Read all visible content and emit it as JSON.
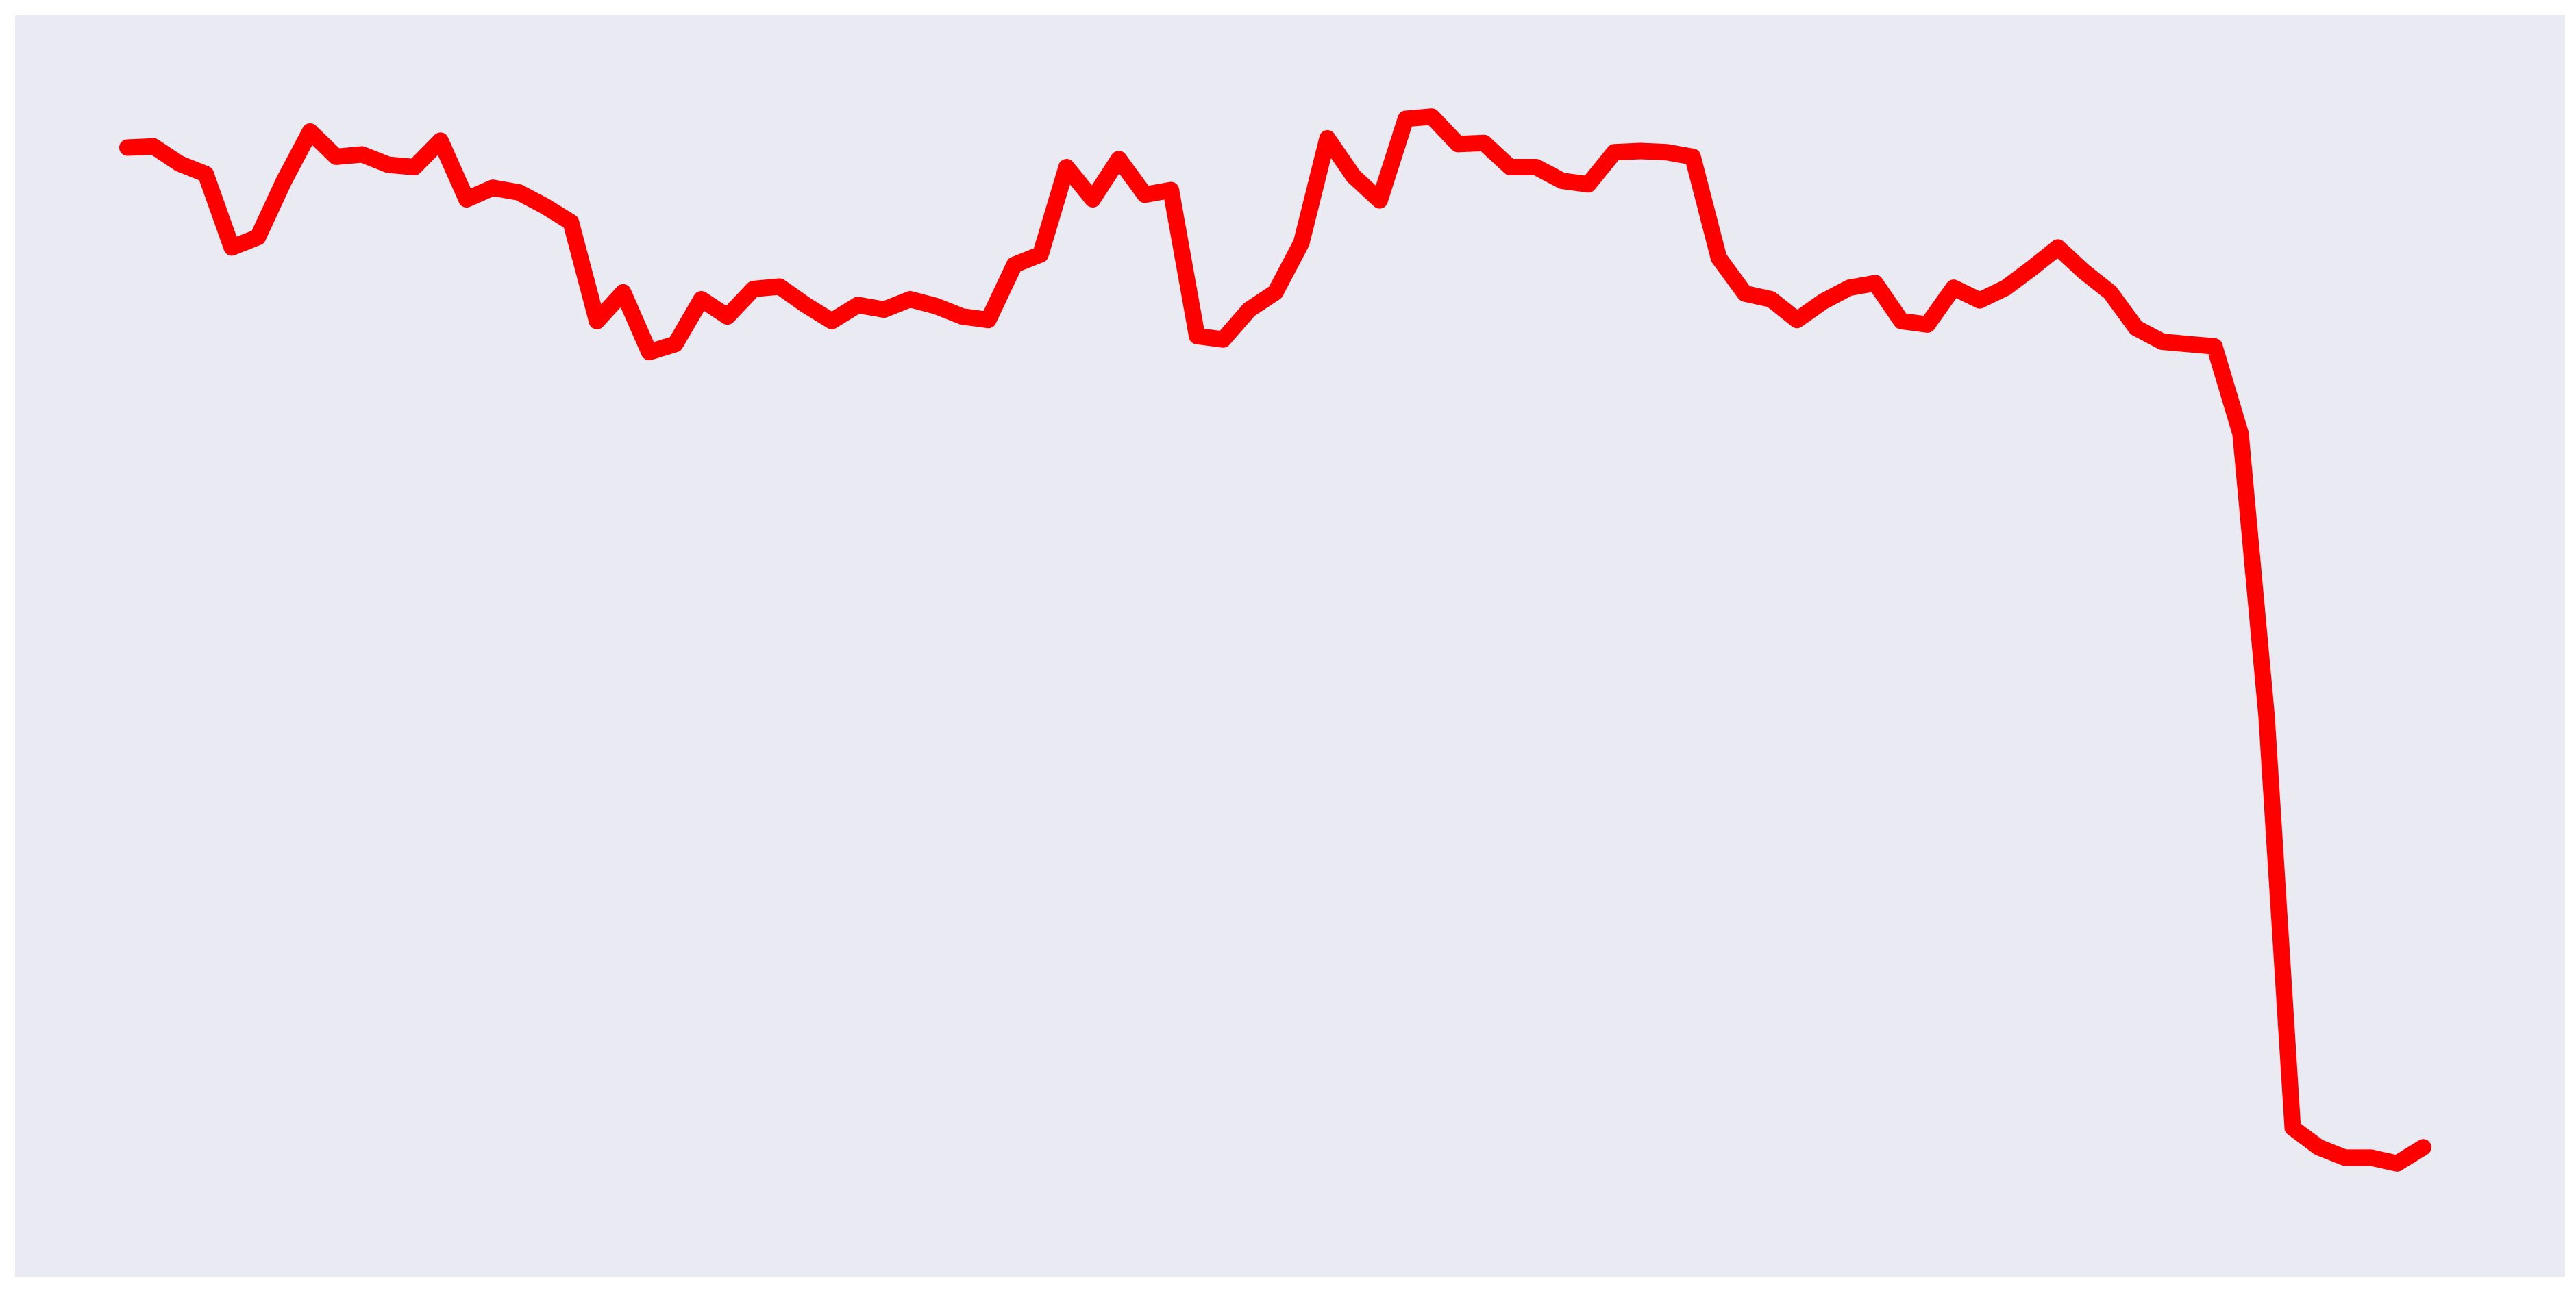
{
  "chart_data": {
    "type": "line",
    "title": "",
    "xlabel": "",
    "ylabel": "",
    "grid": false,
    "legend": "none",
    "colors": {
      "line": "#ff0000",
      "plot_background": "#eaeaf2",
      "page_background": "#ffffff"
    },
    "xlim": [
      0,
      89
    ],
    "ylim": [
      0,
      100
    ],
    "series": [
      {
        "name": "",
        "x": [
          0,
          1,
          2,
          3,
          4,
          5,
          6,
          7,
          8,
          9,
          10,
          11,
          12,
          13,
          14,
          15,
          16,
          17,
          18,
          19,
          20,
          21,
          22,
          23,
          24,
          25,
          26,
          27,
          28,
          29,
          30,
          31,
          32,
          33,
          34,
          35,
          36,
          37,
          38,
          39,
          40,
          41,
          42,
          43,
          44,
          45,
          46,
          47,
          48,
          49,
          50,
          51,
          52,
          53,
          54,
          55,
          56,
          57,
          58,
          59,
          60,
          61,
          62,
          63,
          64,
          65,
          66,
          67,
          68,
          69,
          70,
          71,
          72,
          73,
          74,
          75,
          76,
          77,
          78,
          79,
          80,
          81,
          82,
          83,
          84,
          85,
          86,
          87,
          88
        ],
        "values": [
          93.0,
          93.1,
          91.6,
          90.7,
          84.3,
          85.2,
          90.1,
          94.4,
          92.2,
          92.4,
          91.5,
          91.3,
          93.6,
          88.5,
          89.5,
          89.1,
          87.9,
          86.5,
          77.9,
          80.4,
          75.2,
          75.9,
          79.8,
          78.3,
          80.7,
          80.9,
          79.3,
          77.9,
          79.3,
          78.9,
          79.8,
          79.2,
          78.3,
          78.0,
          82.8,
          83.7,
          91.3,
          88.5,
          92.0,
          88.9,
          89.3,
          76.6,
          76.3,
          78.9,
          80.4,
          84.7,
          93.8,
          90.5,
          88.4,
          95.5,
          95.7,
          93.3,
          93.4,
          91.3,
          91.3,
          90.1,
          89.8,
          92.6,
          92.7,
          92.6,
          92.2,
          83.4,
          80.3,
          79.8,
          78.0,
          79.6,
          80.8,
          81.2,
          77.9,
          77.6,
          80.8,
          79.7,
          80.8,
          82.5,
          84.3,
          82.2,
          80.4,
          77.3,
          76.1,
          75.9,
          75.7,
          68.1,
          43.5,
          7.7,
          6.0,
          5.1,
          5.1,
          4.6,
          6.0
        ]
      }
    ]
  }
}
